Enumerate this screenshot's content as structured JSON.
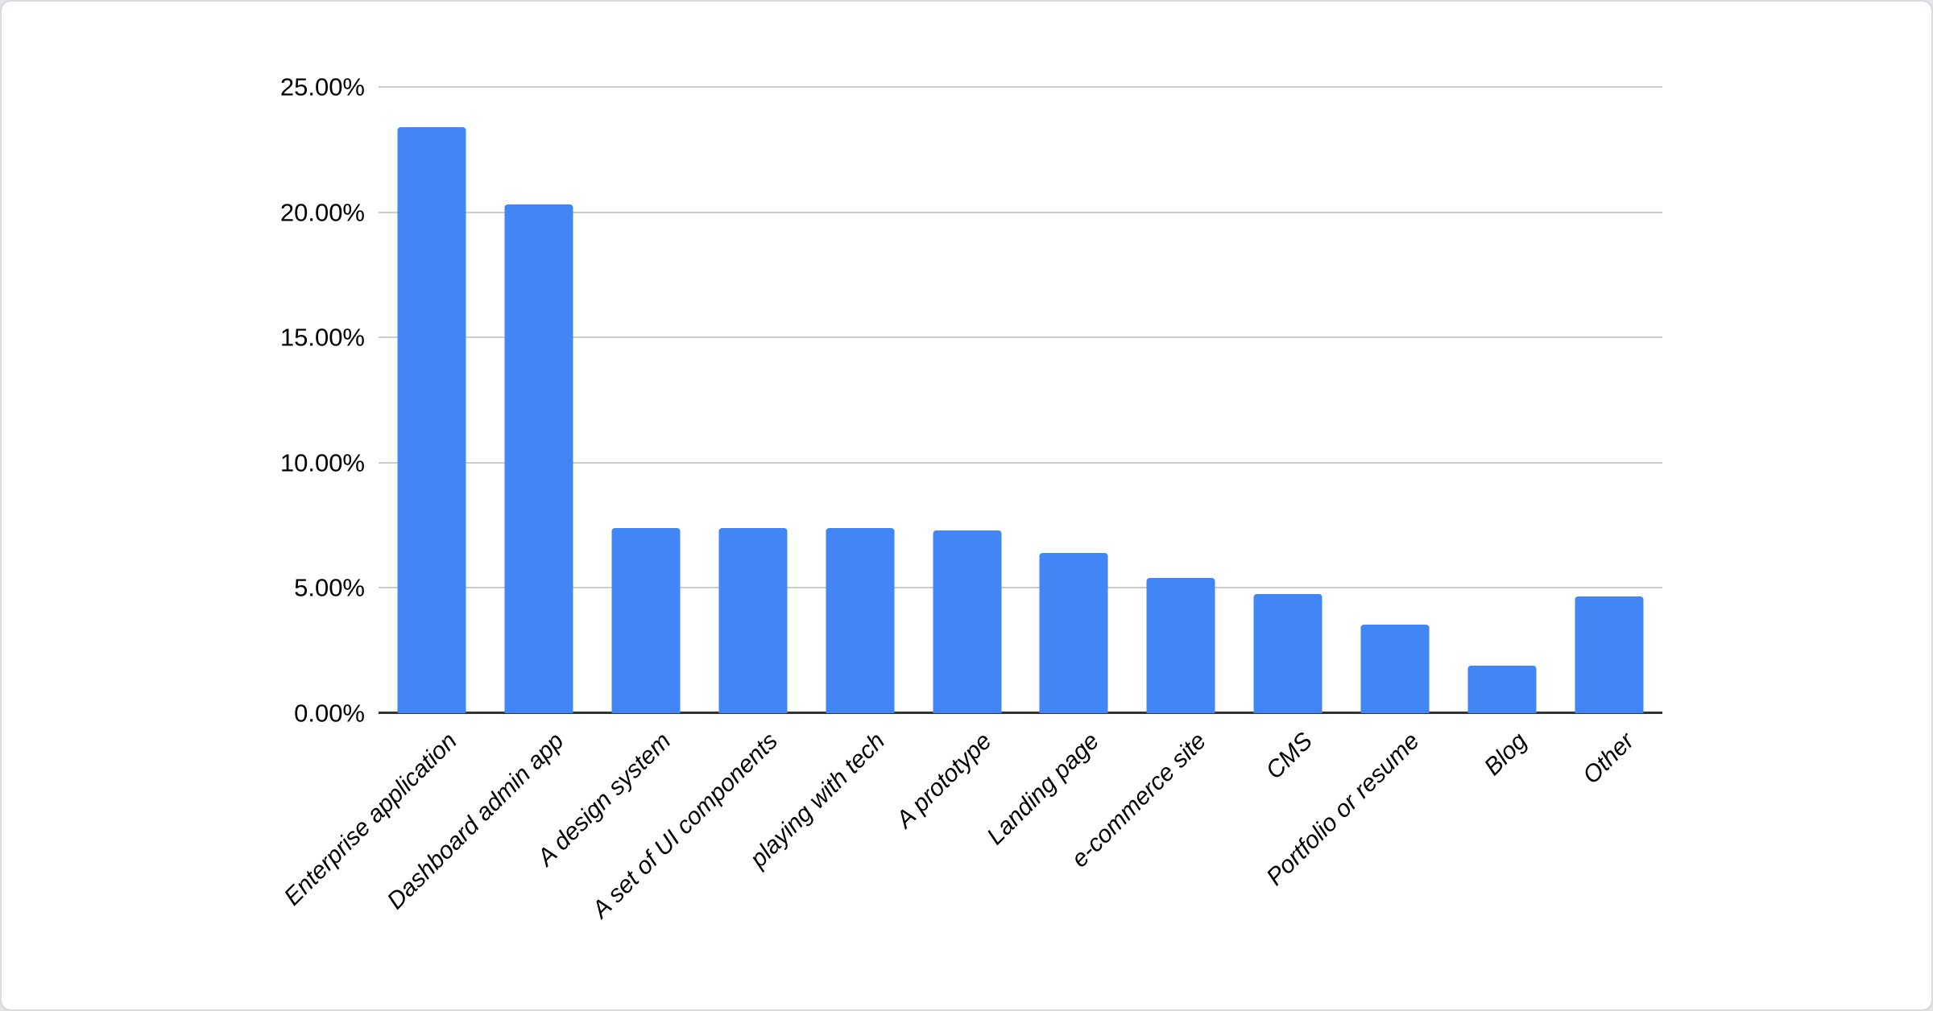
{
  "chart_data": {
    "type": "bar",
    "title": "",
    "xlabel": "",
    "ylabel": "",
    "categories": [
      "Enterprise application",
      "Dashboard admin app",
      "A design system",
      "A set of UI components",
      "playing with tech",
      "A prototype",
      "Landing page",
      "e-commerce site",
      "CMS",
      "Portfolio or resume",
      "Blog",
      "Other"
    ],
    "values": [
      23.4,
      20.3,
      7.4,
      7.4,
      7.4,
      7.3,
      6.4,
      5.4,
      4.75,
      3.55,
      1.9,
      4.65
    ],
    "ylim": [
      0,
      25
    ],
    "y_tick_step": 5,
    "y_tick_labels": [
      "0.00%",
      "5.00%",
      "10.00%",
      "15.00%",
      "20.00%",
      "25.00%"
    ],
    "grid": true,
    "legend": false,
    "colors": {
      "bar": "#4285f4",
      "gridline": "#cccccc",
      "axis_line": "#333333",
      "label_text": "#000000",
      "card_background": "#ffffff",
      "card_border": "#dadce0"
    }
  }
}
